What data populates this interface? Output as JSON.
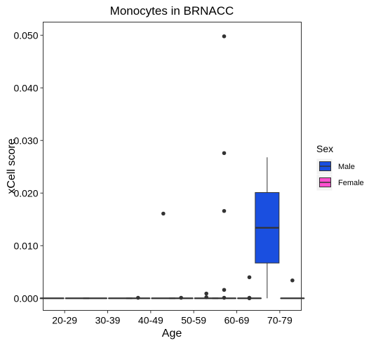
{
  "chart_data": {
    "type": "boxplot",
    "title": "Monocytes in BRNACC",
    "xlabel": "Age",
    "ylabel": "xCell score",
    "categories": [
      "20-29",
      "30-39",
      "40-49",
      "50-59",
      "60-69",
      "70-79"
    ],
    "ylim": [
      -0.0023,
      0.0525
    ],
    "yticks": [
      0,
      0.01,
      0.02,
      0.03,
      0.04,
      0.05
    ],
    "ytick_labels": [
      "0.000",
      "0.010",
      "0.020",
      "0.030",
      "0.040",
      "0.050"
    ],
    "grid": false,
    "legend": {
      "title": "Sex",
      "placement": "right",
      "entries": [
        {
          "label": "Male",
          "color": "#1a4fe0"
        },
        {
          "label": "Female",
          "color": "#ff4fcf"
        }
      ]
    },
    "series": [
      {
        "name": "Male",
        "color": "#1a4fe0",
        "boxes": [
          {
            "category": "20-29",
            "min": 0,
            "q1": 0,
            "median": 0,
            "q3": 0,
            "max": 0,
            "outliers": []
          },
          {
            "category": "30-39",
            "min": 0,
            "q1": 0,
            "median": 0,
            "q3": 0,
            "max": 0,
            "outliers": []
          },
          {
            "category": "40-49",
            "min": 0,
            "q1": 0,
            "median": 0,
            "q3": 0,
            "max": 0,
            "outliers": [
              0.0001
            ]
          },
          {
            "category": "50-59",
            "min": 0,
            "q1": 0,
            "median": 0,
            "q3": 0,
            "max": 0,
            "outliers": [
              0.0001
            ]
          },
          {
            "category": "60-69",
            "min": 0,
            "q1": 0,
            "median": 0,
            "q3": 0,
            "max": 0,
            "outliers": [
              0.0498,
              0.0276,
              0.0166,
              0.0016,
              0.0001
            ]
          },
          {
            "category": "70-79",
            "min": 0,
            "q1": 0.0067,
            "median": 0.0134,
            "q3": 0.0201,
            "max": 0.0268,
            "outliers": []
          }
        ]
      },
      {
        "name": "Female",
        "color": "#ff4fcf",
        "boxes": [
          {
            "category": "20-29",
            "min": 0,
            "q1": 0,
            "median": 0,
            "q3": 0,
            "max": 0,
            "outliers": []
          },
          {
            "category": "30-39",
            "min": 0,
            "q1": 0,
            "median": 0,
            "q3": 0,
            "max": 0,
            "outliers": []
          },
          {
            "category": "40-49",
            "min": 0,
            "q1": 0,
            "median": 0,
            "q3": 0,
            "max": 0,
            "outliers": [
              0.0161
            ]
          },
          {
            "category": "50-59",
            "min": 0,
            "q1": 0,
            "median": 0,
            "q3": 0,
            "max": 0,
            "outliers": [
              0.0009,
              0.0002
            ]
          },
          {
            "category": "60-69",
            "min": 0,
            "q1": 0,
            "median": 0,
            "q3": 0,
            "max": 0,
            "outliers": [
              0.004,
              0.0001,
              0.0
            ]
          },
          {
            "category": "70-79",
            "min": 0,
            "q1": 0,
            "median": 0,
            "q3": 0,
            "max": 0,
            "outliers": [
              0.0034
            ]
          }
        ]
      }
    ]
  }
}
